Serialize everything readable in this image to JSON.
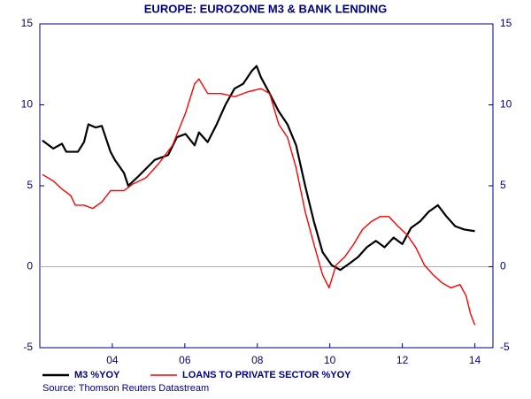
{
  "chart_data": {
    "type": "line",
    "title": "EUROPE: EUROZONE M3 & BANK LENDING",
    "source": "Source: Thomson Reuters Datastream",
    "xlim": [
      2002,
      2014.5
    ],
    "xticks": [
      {
        "value": 2004,
        "label": "04"
      },
      {
        "value": 2006,
        "label": "06"
      },
      {
        "value": 2008,
        "label": "08"
      },
      {
        "value": 2010,
        "label": "10"
      },
      {
        "value": 2012,
        "label": "12"
      },
      {
        "value": 2014,
        "label": "14"
      }
    ],
    "ylim": [
      -5,
      15
    ],
    "yticks": [
      -5,
      0,
      5,
      10,
      15
    ],
    "y2lim": [
      -5,
      15
    ],
    "y2ticks": [
      -5,
      0,
      5,
      10,
      15
    ],
    "grid": false,
    "legend": "bottom",
    "series": [
      {
        "name": "M3 %YOY",
        "color": "#000000",
        "x": [
          2002.07,
          2002.37,
          2002.61,
          2002.73,
          2003.05,
          2003.22,
          2003.34,
          2003.54,
          2003.71,
          2003.95,
          2004.07,
          2004.32,
          2004.44,
          2004.68,
          2005.17,
          2005.54,
          2005.78,
          2006.02,
          2006.27,
          2006.39,
          2006.63,
          2006.88,
          2007.12,
          2007.37,
          2007.61,
          2007.85,
          2007.98,
          2008.1,
          2008.34,
          2008.59,
          2008.83,
          2009.07,
          2009.32,
          2009.56,
          2009.8,
          2010.05,
          2010.29,
          2010.54,
          2010.78,
          2011.02,
          2011.27,
          2011.51,
          2011.76,
          2012.0,
          2012.24,
          2012.49,
          2012.73,
          2012.98,
          2013.22,
          2013.46,
          2013.71,
          2014.0
        ],
        "values": [
          7.8,
          7.3,
          7.6,
          7.1,
          7.1,
          7.7,
          8.8,
          8.6,
          8.7,
          7.1,
          6.6,
          5.8,
          5.0,
          5.5,
          6.6,
          6.9,
          8.0,
          8.2,
          7.5,
          8.3,
          7.7,
          8.8,
          10.0,
          11.0,
          11.3,
          12.1,
          12.4,
          11.7,
          10.7,
          9.6,
          8.8,
          7.5,
          5.0,
          2.8,
          0.9,
          0.1,
          -0.2,
          0.2,
          0.6,
          1.2,
          1.6,
          1.2,
          1.8,
          1.4,
          2.4,
          2.8,
          3.4,
          3.8,
          3.1,
          2.5,
          2.3,
          2.2
        ]
      },
      {
        "name": "LOANS TO PRIVATE SECTOR %YOY",
        "color": "#ff0000",
        "x": [
          2002.07,
          2002.37,
          2002.61,
          2002.85,
          2002.98,
          2003.22,
          2003.46,
          2003.71,
          2003.95,
          2004.32,
          2004.56,
          2004.93,
          2005.29,
          2005.66,
          2006.02,
          2006.27,
          2006.39,
          2006.63,
          2007.0,
          2007.37,
          2007.73,
          2008.1,
          2008.34,
          2008.59,
          2008.83,
          2009.07,
          2009.32,
          2009.56,
          2009.8,
          2009.98,
          2010.17,
          2010.41,
          2010.66,
          2010.9,
          2011.15,
          2011.39,
          2011.63,
          2011.88,
          2012.12,
          2012.37,
          2012.61,
          2012.85,
          2013.1,
          2013.34,
          2013.59,
          2013.76,
          2013.88,
          2014.0
        ],
        "values": [
          5.7,
          5.3,
          4.8,
          4.4,
          3.8,
          3.8,
          3.6,
          4.0,
          4.7,
          4.7,
          5.1,
          5.5,
          6.4,
          7.5,
          9.5,
          11.3,
          11.6,
          10.7,
          10.7,
          10.5,
          10.8,
          11.0,
          10.7,
          8.8,
          8.0,
          6.1,
          3.4,
          1.4,
          -0.5,
          -1.3,
          0.1,
          0.6,
          1.4,
          2.3,
          2.8,
          3.1,
          3.1,
          2.5,
          2.0,
          1.2,
          0.1,
          -0.5,
          -1.0,
          -1.3,
          -1.1,
          -1.8,
          -2.9,
          -3.6
        ]
      }
    ]
  }
}
